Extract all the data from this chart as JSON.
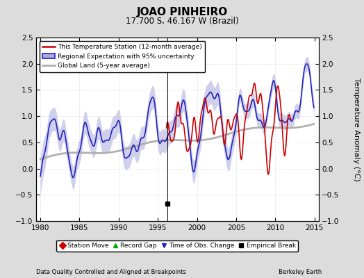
{
  "title": "JOAO PINHEIRO",
  "subtitle": "17.700 S, 46.167 W (Brazil)",
  "ylabel": "Temperature Anomaly (°C)",
  "xlabel_left": "Data Quality Controlled and Aligned at Breakpoints",
  "xlabel_right": "Berkeley Earth",
  "ylim": [
    -1.0,
    2.5
  ],
  "xlim": [
    1979.5,
    2015.5
  ],
  "xticks": [
    1980,
    1985,
    1990,
    1995,
    2000,
    2005,
    2010,
    2015
  ],
  "yticks": [
    -1.0,
    -0.5,
    0.0,
    0.5,
    1.0,
    1.5,
    2.0,
    2.5
  ],
  "bg_color": "#dcdcdc",
  "plot_bg_color": "#ffffff",
  "grid_color": "#c8c8c8",
  "regional_color": "#2222bb",
  "regional_fill_color": "#aaaadd",
  "regional_fill_alpha": 0.55,
  "station_color": "#cc0000",
  "global_color": "#b0b0b0",
  "global_lw": 2.0,
  "regional_lw": 1.2,
  "station_lw": 1.2,
  "vertical_line_x": 1996.25,
  "empirical_break_x": 1996.25,
  "empirical_break_y": -0.67,
  "figsize": [
    5.24,
    4.0
  ],
  "dpi": 100
}
